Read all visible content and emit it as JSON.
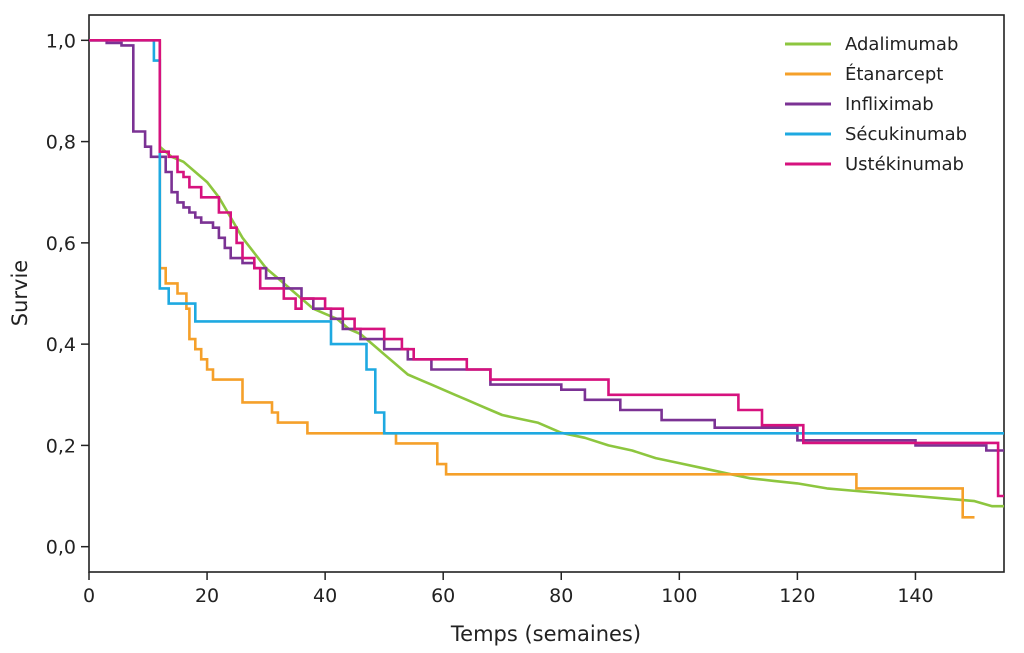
{
  "chart_data": {
    "type": "line",
    "title": "",
    "xlabel": "Temps (semaines)",
    "ylabel": "Survie",
    "xlim": [
      0,
      155
    ],
    "ylim": [
      -0.05,
      1.05
    ],
    "xticks": [
      0,
      20,
      40,
      60,
      80,
      100,
      120,
      140
    ],
    "xtick_labels": [
      "0",
      "20",
      "40",
      "60",
      "80",
      "100",
      "120",
      "140"
    ],
    "yticks": [
      0,
      0.2,
      0.4,
      0.6,
      0.8,
      1.0
    ],
    "ytick_labels": [
      "0,0",
      "0,2",
      "0,4",
      "0,6",
      "0,8",
      "1,0"
    ],
    "grid": false,
    "legend_position": "top-right",
    "series": [
      {
        "name": "Adalimumab",
        "color": "#8dc63f",
        "step": false,
        "points": [
          [
            12,
            0.79
          ],
          [
            14,
            0.77
          ],
          [
            16,
            0.76
          ],
          [
            18,
            0.74
          ],
          [
            20,
            0.72
          ],
          [
            22,
            0.69
          ],
          [
            24,
            0.65
          ],
          [
            26,
            0.61
          ],
          [
            28,
            0.58
          ],
          [
            30,
            0.55
          ],
          [
            32,
            0.53
          ],
          [
            34,
            0.51
          ],
          [
            36,
            0.49
          ],
          [
            38,
            0.47
          ],
          [
            40,
            0.46
          ],
          [
            42,
            0.45
          ],
          [
            44,
            0.43
          ],
          [
            46,
            0.42
          ],
          [
            48,
            0.4
          ],
          [
            50,
            0.38
          ],
          [
            52,
            0.36
          ],
          [
            54,
            0.34
          ],
          [
            56,
            0.33
          ],
          [
            58,
            0.32
          ],
          [
            60,
            0.31
          ],
          [
            62,
            0.3
          ],
          [
            64,
            0.29
          ],
          [
            66,
            0.28
          ],
          [
            68,
            0.27
          ],
          [
            70,
            0.26
          ],
          [
            72,
            0.255
          ],
          [
            74,
            0.25
          ],
          [
            76,
            0.245
          ],
          [
            78,
            0.235
          ],
          [
            80,
            0.225
          ],
          [
            84,
            0.215
          ],
          [
            88,
            0.2
          ],
          [
            92,
            0.19
          ],
          [
            96,
            0.175
          ],
          [
            100,
            0.165
          ],
          [
            104,
            0.155
          ],
          [
            108,
            0.145
          ],
          [
            112,
            0.135
          ],
          [
            116,
            0.13
          ],
          [
            120,
            0.125
          ],
          [
            125,
            0.115
          ],
          [
            130,
            0.11
          ],
          [
            135,
            0.105
          ],
          [
            140,
            0.1
          ],
          [
            145,
            0.095
          ],
          [
            150,
            0.09
          ],
          [
            153,
            0.08
          ],
          [
            155,
            0.08
          ]
        ]
      },
      {
        "name": "Étanarcept",
        "color": "#f5a02a",
        "step": true,
        "points": [
          [
            12,
            1.0
          ],
          [
            12,
            0.55
          ],
          [
            13,
            0.55
          ],
          [
            13,
            0.52
          ],
          [
            15,
            0.52
          ],
          [
            15,
            0.5
          ],
          [
            16.5,
            0.5
          ],
          [
            16.5,
            0.47
          ],
          [
            17,
            0.47
          ],
          [
            17,
            0.41
          ],
          [
            18,
            0.41
          ],
          [
            18,
            0.39
          ],
          [
            19,
            0.39
          ],
          [
            19,
            0.37
          ],
          [
            20,
            0.37
          ],
          [
            20,
            0.35
          ],
          [
            21,
            0.35
          ],
          [
            21,
            0.33
          ],
          [
            26,
            0.33
          ],
          [
            26,
            0.285
          ],
          [
            31,
            0.285
          ],
          [
            31,
            0.265
          ],
          [
            32,
            0.265
          ],
          [
            32,
            0.245
          ],
          [
            37,
            0.245
          ],
          [
            37,
            0.224
          ],
          [
            52,
            0.224
          ],
          [
            52,
            0.204
          ],
          [
            59,
            0.204
          ],
          [
            59,
            0.163
          ],
          [
            60.5,
            0.163
          ],
          [
            60.5,
            0.143
          ],
          [
            130,
            0.143
          ],
          [
            130,
            0.115
          ],
          [
            148,
            0.115
          ],
          [
            148,
            0.058
          ],
          [
            150,
            0.058
          ]
        ]
      },
      {
        "name": "Infliximab",
        "color": "#7b3294",
        "step": true,
        "points": [
          [
            0,
            1.0
          ],
          [
            3,
            1.0
          ],
          [
            3,
            0.995
          ],
          [
            5.5,
            0.995
          ],
          [
            5.5,
            0.99
          ],
          [
            7.5,
            0.99
          ],
          [
            7.5,
            0.82
          ],
          [
            9.5,
            0.82
          ],
          [
            9.5,
            0.79
          ],
          [
            10.5,
            0.79
          ],
          [
            10.5,
            0.77
          ],
          [
            13,
            0.77
          ],
          [
            13,
            0.74
          ],
          [
            14,
            0.74
          ],
          [
            14,
            0.7
          ],
          [
            15,
            0.7
          ],
          [
            15,
            0.68
          ],
          [
            16,
            0.68
          ],
          [
            16,
            0.67
          ],
          [
            17,
            0.67
          ],
          [
            17,
            0.66
          ],
          [
            18,
            0.66
          ],
          [
            18,
            0.65
          ],
          [
            19,
            0.65
          ],
          [
            19,
            0.64
          ],
          [
            21,
            0.64
          ],
          [
            21,
            0.63
          ],
          [
            22,
            0.63
          ],
          [
            22,
            0.61
          ],
          [
            23,
            0.61
          ],
          [
            23,
            0.59
          ],
          [
            24,
            0.59
          ],
          [
            24,
            0.57
          ],
          [
            26,
            0.57
          ],
          [
            26,
            0.56
          ],
          [
            28,
            0.56
          ],
          [
            28,
            0.55
          ],
          [
            30,
            0.55
          ],
          [
            30,
            0.53
          ],
          [
            33,
            0.53
          ],
          [
            33,
            0.51
          ],
          [
            36,
            0.51
          ],
          [
            36,
            0.49
          ],
          [
            38,
            0.49
          ],
          [
            38,
            0.47
          ],
          [
            41,
            0.47
          ],
          [
            41,
            0.45
          ],
          [
            43,
            0.45
          ],
          [
            43,
            0.43
          ],
          [
            46,
            0.43
          ],
          [
            46,
            0.41
          ],
          [
            50,
            0.41
          ],
          [
            50,
            0.39
          ],
          [
            54,
            0.39
          ],
          [
            54,
            0.37
          ],
          [
            58,
            0.37
          ],
          [
            58,
            0.35
          ],
          [
            68,
            0.35
          ],
          [
            68,
            0.32
          ],
          [
            80,
            0.32
          ],
          [
            80,
            0.31
          ],
          [
            84,
            0.31
          ],
          [
            84,
            0.29
          ],
          [
            90,
            0.29
          ],
          [
            90,
            0.27
          ],
          [
            97,
            0.27
          ],
          [
            97,
            0.25
          ],
          [
            106,
            0.25
          ],
          [
            106,
            0.235
          ],
          [
            120,
            0.235
          ],
          [
            120,
            0.21
          ],
          [
            140,
            0.21
          ],
          [
            140,
            0.2
          ],
          [
            152,
            0.2
          ],
          [
            152,
            0.19
          ],
          [
            155,
            0.19
          ]
        ]
      },
      {
        "name": "Sécukinumab",
        "color": "#1ea9e1",
        "step": true,
        "points": [
          [
            0,
            1.0
          ],
          [
            11,
            1.0
          ],
          [
            11,
            0.96
          ],
          [
            12,
            0.96
          ],
          [
            12,
            0.51
          ],
          [
            13.5,
            0.51
          ],
          [
            13.5,
            0.48
          ],
          [
            18,
            0.48
          ],
          [
            18,
            0.445
          ],
          [
            41,
            0.445
          ],
          [
            41,
            0.4
          ],
          [
            47,
            0.4
          ],
          [
            47,
            0.35
          ],
          [
            48.5,
            0.35
          ],
          [
            48.5,
            0.265
          ],
          [
            50,
            0.265
          ],
          [
            50,
            0.224
          ],
          [
            155,
            0.224
          ]
        ]
      },
      {
        "name": "Ustékinumab",
        "color": "#d6127e",
        "step": true,
        "points": [
          [
            0,
            1.0
          ],
          [
            12,
            1.0
          ],
          [
            12,
            0.78
          ],
          [
            13.5,
            0.78
          ],
          [
            13.5,
            0.77
          ],
          [
            15,
            0.77
          ],
          [
            15,
            0.74
          ],
          [
            16,
            0.74
          ],
          [
            16,
            0.73
          ],
          [
            17,
            0.73
          ],
          [
            17,
            0.71
          ],
          [
            19,
            0.71
          ],
          [
            19,
            0.69
          ],
          [
            22,
            0.69
          ],
          [
            22,
            0.66
          ],
          [
            24,
            0.66
          ],
          [
            24,
            0.63
          ],
          [
            25,
            0.63
          ],
          [
            25,
            0.6
          ],
          [
            26,
            0.6
          ],
          [
            26,
            0.57
          ],
          [
            28,
            0.57
          ],
          [
            28,
            0.55
          ],
          [
            29,
            0.55
          ],
          [
            29,
            0.51
          ],
          [
            33,
            0.51
          ],
          [
            33,
            0.49
          ],
          [
            35,
            0.49
          ],
          [
            35,
            0.47
          ],
          [
            36,
            0.47
          ],
          [
            36,
            0.49
          ],
          [
            40,
            0.49
          ],
          [
            40,
            0.47
          ],
          [
            43,
            0.47
          ],
          [
            43,
            0.45
          ],
          [
            45,
            0.45
          ],
          [
            45,
            0.43
          ],
          [
            50,
            0.43
          ],
          [
            50,
            0.41
          ],
          [
            53,
            0.41
          ],
          [
            53,
            0.39
          ],
          [
            55,
            0.39
          ],
          [
            55,
            0.37
          ],
          [
            64,
            0.37
          ],
          [
            64,
            0.35
          ],
          [
            68,
            0.35
          ],
          [
            68,
            0.33
          ],
          [
            88,
            0.33
          ],
          [
            88,
            0.3
          ],
          [
            110,
            0.3
          ],
          [
            110,
            0.27
          ],
          [
            114,
            0.27
          ],
          [
            114,
            0.24
          ],
          [
            121,
            0.24
          ],
          [
            121,
            0.205
          ],
          [
            154,
            0.205
          ],
          [
            154,
            0.1
          ],
          [
            155,
            0.1
          ]
        ]
      }
    ]
  }
}
